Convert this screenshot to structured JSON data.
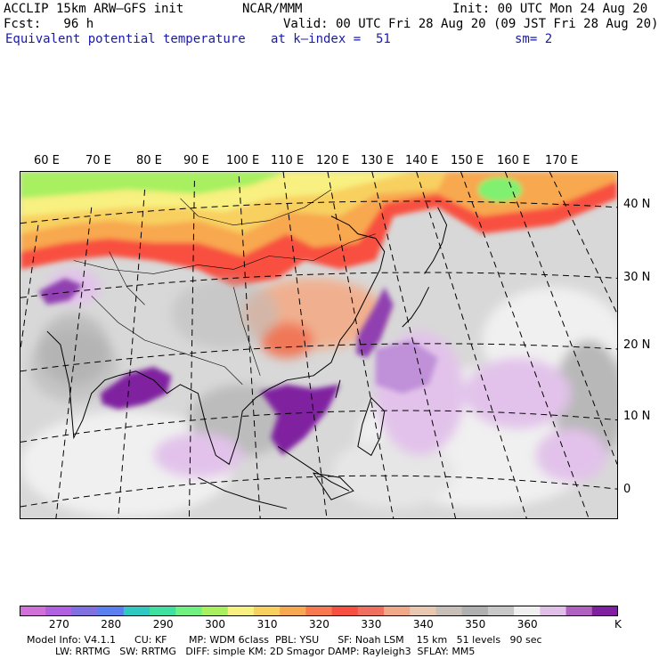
{
  "header": {
    "line1_left": "ACCLIP 15km ARW—GFS init",
    "line1_center": "NCAR/MMM",
    "line1_right": "Init: 00 UTC Mon 24 Aug 20",
    "line2_left": "Fcst:   96 h",
    "line2_right": "Valid: 00 UTC Fri 28 Aug 20 (09 JST Fri 28 Aug 20)",
    "line3_left": "Equivalent potential temperature",
    "line3_center": "at k—index =  51",
    "line3_right": "sm= 2"
  },
  "map": {
    "lon_labels": [
      "60 E",
      "70 E",
      "80 E",
      "90 E",
      "100 E",
      "110 E",
      "120 E",
      "130 E",
      "140 E",
      "150 E",
      "160 E",
      "170 E"
    ],
    "lat_labels": [
      "40 N",
      "30 N",
      "20 N",
      "10 N",
      "0"
    ]
  },
  "colorbar": {
    "colors": [
      "#d070d8",
      "#b060e0",
      "#8070e0",
      "#5a80f0",
      "#30c8c0",
      "#40e0a0",
      "#70f080",
      "#a8f060",
      "#f8f080",
      "#f8d060",
      "#f8a850",
      "#f87850",
      "#f85040",
      "#f07060",
      "#f0a888",
      "#e8c8b0",
      "#c8c0b8",
      "#b0b0b0",
      "#c8c8c8",
      "#f0f0f0",
      "#e0c0e8",
      "#b060c0",
      "#8020a0"
    ],
    "tick_labels": [
      "270",
      "280",
      "290",
      "300",
      "310",
      "320",
      "330",
      "340",
      "350",
      "360"
    ],
    "unit": "K"
  },
  "footer": {
    "line1": "Model Info: V4.1.1      CU: KF       MP: WDM 6class  PBL: YSU      SF: Noah LSM    15 km   51 levels   90 sec",
    "line2": "LW: RRTMG   SW: RRTMG   DIFF: simple KM: 2D Smagor DAMP: Rayleigh3  SFLAY: MM5"
  }
}
